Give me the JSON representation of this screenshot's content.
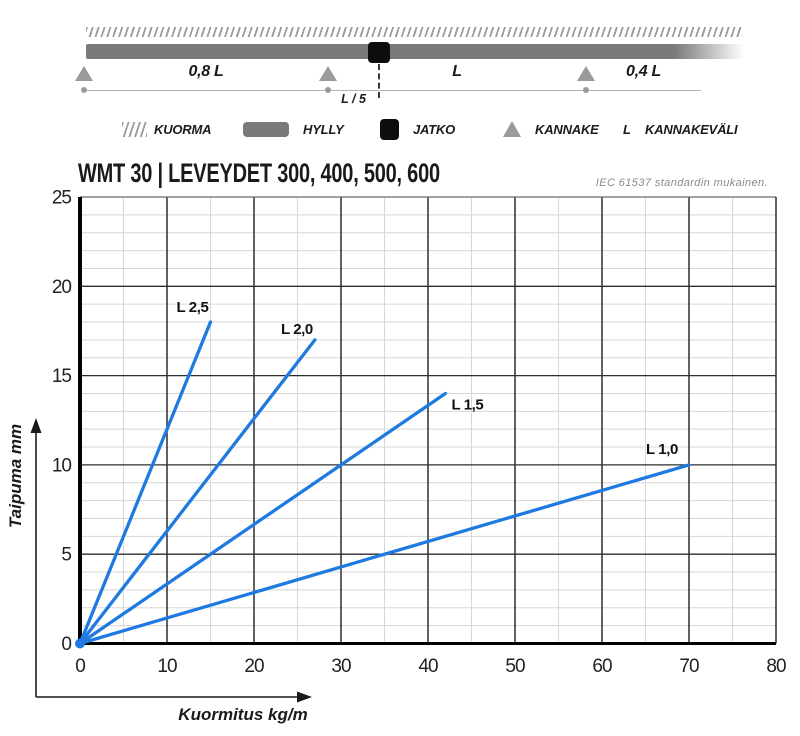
{
  "diagram": {
    "labels": {
      "span1": "0,8 L",
      "span2": "L",
      "span3": "0,4 L",
      "offset": "L / 5"
    }
  },
  "legend": {
    "items": [
      {
        "icon": "hatch",
        "label": "KUORMA"
      },
      {
        "icon": "bar",
        "label": "HYLLY"
      },
      {
        "icon": "square",
        "label": "JATKO"
      },
      {
        "icon": "triangle",
        "label": "KANNAKE"
      },
      {
        "icon": "letter",
        "symbol": "L",
        "label": "KANNAKEVÄLI"
      }
    ]
  },
  "header": {
    "title": "WMT 30 | LEVEYDET 300, 400, 500, 600",
    "note": "IEC 61537 standardin mukainen."
  },
  "chart_data": {
    "type": "line",
    "title": "WMT 30 | LEVEYDET 300, 400, 500, 600",
    "xlabel": "Kuormitus kg/m",
    "ylabel": "Taipuma mm",
    "xlim": [
      0,
      80
    ],
    "ylim": [
      0,
      25
    ],
    "x_ticks": [
      0,
      10,
      20,
      30,
      40,
      50,
      60,
      70,
      80
    ],
    "y_ticks": [
      0,
      5,
      10,
      15,
      20,
      25
    ],
    "x_major": 10,
    "x_minor": 5,
    "y_major": 5,
    "y_minor": 1,
    "grid": true,
    "line_color": "#1e7ae0",
    "series": [
      {
        "name": "L 2,5",
        "points": [
          [
            0,
            0
          ],
          [
            15,
            18
          ]
        ]
      },
      {
        "name": "L 2,0",
        "points": [
          [
            0,
            0
          ],
          [
            27,
            17
          ]
        ]
      },
      {
        "name": "L 1,5",
        "points": [
          [
            0,
            0
          ],
          [
            42,
            14
          ]
        ]
      },
      {
        "name": "L 1,0",
        "points": [
          [
            0,
            0
          ],
          [
            70,
            10
          ]
        ]
      }
    ]
  },
  "colors": {
    "accent_blue": "#1e7ae0",
    "shelf_gray": "#7a7a7a",
    "support_gray": "#9a9a9a",
    "joint_black": "#0d0d0d"
  }
}
